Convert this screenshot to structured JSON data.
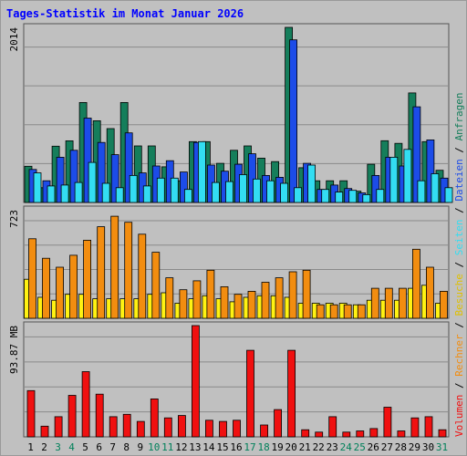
{
  "title": "Tages-Statistik im Monat Januar 2026",
  "chart_data": [
    {
      "type": "bar",
      "panel": "top",
      "ymax_label": "2014",
      "ylim": [
        0,
        2014
      ],
      "categories": [
        "1",
        "2",
        "3",
        "4",
        "5",
        "6",
        "7",
        "8",
        "9",
        "10",
        "11",
        "12",
        "13",
        "14",
        "15",
        "16",
        "17",
        "18",
        "19",
        "20",
        "21",
        "22",
        "23",
        "24",
        "25",
        "26",
        "27",
        "28",
        "29",
        "30",
        "31"
      ],
      "series": [
        {
          "name": "Anfragen",
          "color": "#157e5b",
          "values": [
            416,
            170,
            647,
            709,
            1150,
            940,
            850,
            1150,
            650,
            650,
            410,
            250,
            700,
            700,
            450,
            600,
            650,
            510,
            470,
            2014,
            400,
            250,
            250,
            250,
            130,
            440,
            710,
            680,
            1260,
            700,
            370
          ]
        },
        {
          "name": "Dateien",
          "color": "#1c4ce8",
          "values": [
            380,
            250,
            520,
            600,
            970,
            690,
            550,
            800,
            340,
            420,
            480,
            350,
            690,
            430,
            360,
            440,
            560,
            310,
            290,
            1870,
            450,
            150,
            200,
            160,
            110,
            310,
            520,
            420,
            1100,
            720,
            280
          ]
        },
        {
          "name": "Seiten",
          "color": "#33ddf2",
          "values": [
            340,
            190,
            200,
            230,
            460,
            220,
            170,
            310,
            190,
            280,
            280,
            150,
            700,
            230,
            240,
            320,
            270,
            250,
            220,
            170,
            430,
            150,
            120,
            140,
            90,
            150,
            520,
            610,
            250,
            330,
            170
          ]
        }
      ]
    },
    {
      "type": "bar",
      "panel": "middle",
      "ymax_label": "723",
      "ylim": [
        0,
        723
      ],
      "categories": [
        "1",
        "2",
        "3",
        "4",
        "5",
        "6",
        "7",
        "8",
        "9",
        "10",
        "11",
        "12",
        "13",
        "14",
        "15",
        "16",
        "17",
        "18",
        "19",
        "20",
        "21",
        "22",
        "23",
        "24",
        "25",
        "26",
        "27",
        "28",
        "29",
        "30",
        "31"
      ],
      "series": [
        {
          "name": "Besuche",
          "color": "#fff212",
          "values": [
            260,
            140,
            120,
            160,
            160,
            130,
            130,
            130,
            130,
            160,
            170,
            100,
            130,
            150,
            130,
            110,
            140,
            150,
            150,
            140,
            100,
            100,
            100,
            100,
            90,
            120,
            120,
            120,
            200,
            220,
            100
          ]
        },
        {
          "name": "Rechner",
          "color": "#f28d10",
          "values": [
            530,
            400,
            340,
            420,
            520,
            610,
            680,
            640,
            560,
            440,
            270,
            190,
            250,
            320,
            210,
            160,
            180,
            240,
            270,
            310,
            320,
            90,
            90,
            90,
            90,
            200,
            200,
            200,
            460,
            340,
            180
          ]
        }
      ]
    },
    {
      "type": "bar",
      "panel": "bottom",
      "ymax_label": "93.87 MB",
      "ylim": [
        0,
        93.87
      ],
      "unit": "MB",
      "categories": [
        "1",
        "2",
        "3",
        "4",
        "5",
        "6",
        "7",
        "8",
        "9",
        "10",
        "11",
        "12",
        "13",
        "14",
        "15",
        "16",
        "17",
        "18",
        "19",
        "20",
        "21",
        "22",
        "23",
        "24",
        "25",
        "26",
        "27",
        "28",
        "29",
        "30",
        "31"
      ],
      "series": [
        {
          "name": "Volumen",
          "color": "#f01010",
          "values": [
            39,
            9,
            17,
            35,
            55,
            36,
            17,
            19,
            13,
            32,
            16,
            18,
            93.87,
            14,
            13,
            14,
            73,
            10,
            23,
            73,
            6,
            4,
            17,
            4,
            5,
            7,
            25,
            5,
            16,
            17,
            6
          ]
        }
      ]
    }
  ],
  "legend": [
    {
      "label": "Volumen",
      "color": "#f01010"
    },
    {
      "label": "Rechner",
      "color": "#f28d10"
    },
    {
      "label": "Besuche",
      "color": "#e0c000"
    },
    {
      "label": "Seiten",
      "color": "#33ddf2"
    },
    {
      "label": "Dateien",
      "color": "#1c4ce8"
    },
    {
      "label": "Anfragen",
      "color": "#157e5b"
    }
  ],
  "x_label_colors": {
    "weekday": "#000000",
    "weekend": "#00805a"
  },
  "weekend_days": [
    "3",
    "4",
    "10",
    "11",
    "17",
    "18",
    "24",
    "25",
    "31"
  ]
}
